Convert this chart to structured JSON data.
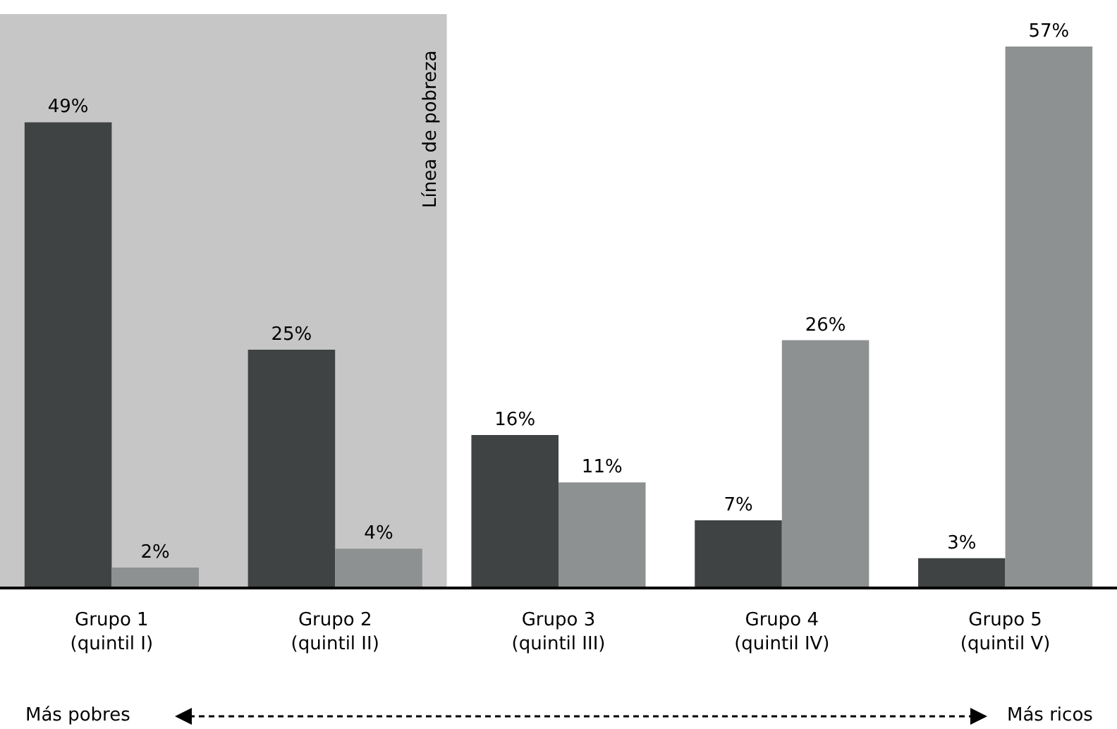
{
  "chart_data": {
    "type": "bar",
    "categories": [
      "Grupo 1\n(quintil I)",
      "Grupo 2\n(quintil II)",
      "Grupo 3\n(quintil III)",
      "Grupo 4\n(quintil IV)",
      "Grupo 5\n(quintil V)"
    ],
    "series": [
      {
        "color": "#3f4343",
        "values": [
          49,
          25,
          16,
          7,
          3
        ],
        "value_labels": [
          "49%",
          "25%",
          "16%",
          "7%",
          "3%"
        ]
      },
      {
        "color": "#8e9192",
        "values": [
          2,
          4,
          11,
          26,
          57
        ],
        "value_labels": [
          "2%",
          "4%",
          "11%",
          "26%",
          "57%"
        ]
      }
    ],
    "bands": [
      {
        "axis": "x",
        "from": "Grupo 1\n(quintil I)",
        "to": "Grupo 2\n(quintil II)",
        "label": "Línea de pobreza",
        "color": "#c6c6c6"
      }
    ],
    "annotations": [
      "Más pobres",
      "Más ricos"
    ],
    "grid": false
  }
}
